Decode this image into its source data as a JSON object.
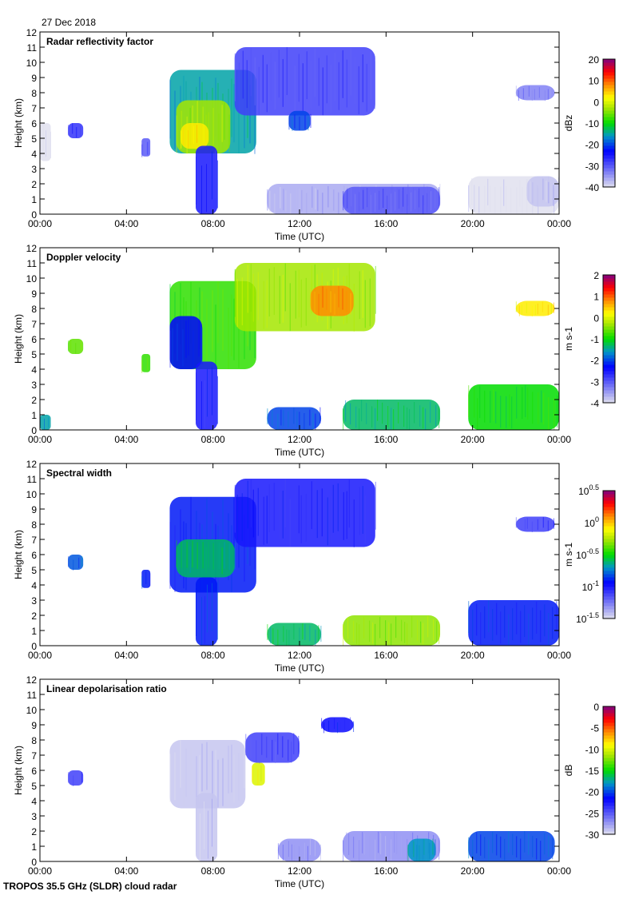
{
  "date": "27 Dec 2018",
  "footer": "TROPOS 35.5 GHz (SLDR) cloud radar",
  "chart_data": [
    {
      "type": "heatmap",
      "title": "Radar reflectivity factor",
      "xlabel": "Time (UTC)",
      "ylabel": "Height (km)",
      "xlim": [
        0,
        24
      ],
      "ylim": [
        0,
        12
      ],
      "xticks": [
        "00:00",
        "04:00",
        "08:00",
        "12:00",
        "16:00",
        "20:00",
        "00:00"
      ],
      "yticks": [
        "0",
        "1",
        "2",
        "3",
        "4",
        "5",
        "6",
        "7",
        "8",
        "9",
        "10",
        "11",
        "12"
      ],
      "colorbar": {
        "label": "dBz",
        "clim": [
          -40,
          20
        ],
        "ticks": [
          "-40",
          "-30",
          "-20",
          "-10",
          "0",
          "10",
          "20"
        ]
      },
      "features": [
        {
          "t": [
            6.0,
            10.0
          ],
          "h": [
            4.0,
            9.5
          ],
          "v": -15
        },
        {
          "t": [
            6.3,
            8.8
          ],
          "h": [
            4.0,
            7.5
          ],
          "v": -3
        },
        {
          "t": [
            6.5,
            7.8
          ],
          "h": [
            4.3,
            6.0
          ],
          "v": 3
        },
        {
          "t": [
            7.2,
            8.2
          ],
          "h": [
            0.0,
            4.5
          ],
          "v": -25
        },
        {
          "t": [
            9.0,
            15.5
          ],
          "h": [
            6.5,
            11.0
          ],
          "v": -28
        },
        {
          "t": [
            11.5,
            12.5
          ],
          "h": [
            5.5,
            6.8
          ],
          "v": -20
        },
        {
          "t": [
            1.3,
            2.0
          ],
          "h": [
            5.0,
            6.0
          ],
          "v": -27
        },
        {
          "t": [
            4.7,
            5.1
          ],
          "h": [
            3.8,
            5.0
          ],
          "v": -30
        },
        {
          "t": [
            10.5,
            18.5
          ],
          "h": [
            0.0,
            2.0
          ],
          "v": -36
        },
        {
          "t": [
            14.0,
            18.5
          ],
          "h": [
            0.0,
            1.8
          ],
          "v": -30
        },
        {
          "t": [
            19.8,
            24.0
          ],
          "h": [
            0.0,
            2.5
          ],
          "v": -40
        },
        {
          "t": [
            22.5,
            24.0
          ],
          "h": [
            0.5,
            2.5
          ],
          "v": -38
        },
        {
          "t": [
            22.0,
            23.8
          ],
          "h": [
            7.5,
            8.5
          ],
          "v": -33
        },
        {
          "t": [
            0.0,
            0.5
          ],
          "h": [
            3.5,
            6.0
          ],
          "v": -40
        }
      ]
    },
    {
      "type": "heatmap",
      "title": "Doppler velocity",
      "xlabel": "Time (UTC)",
      "ylabel": "Height (km)",
      "xlim": [
        0,
        24
      ],
      "ylim": [
        0,
        12
      ],
      "xticks": [
        "00:00",
        "04:00",
        "08:00",
        "12:00",
        "16:00",
        "20:00",
        "00:00"
      ],
      "yticks": [
        "0",
        "1",
        "2",
        "3",
        "4",
        "5",
        "6",
        "7",
        "8",
        "9",
        "10",
        "11",
        "12"
      ],
      "colorbar": {
        "label": "m s-1",
        "clim": [
          -4,
          2
        ],
        "ticks": [
          "-4",
          "-3",
          "-2",
          "-1",
          "0",
          "1",
          "2"
        ]
      },
      "features": [
        {
          "t": [
            6.0,
            10.0
          ],
          "h": [
            4.0,
            9.8
          ],
          "v": -0.8
        },
        {
          "t": [
            6.0,
            7.5
          ],
          "h": [
            4.0,
            7.5
          ],
          "v": -2.3
        },
        {
          "t": [
            7.2,
            8.2
          ],
          "h": [
            0.0,
            4.5
          ],
          "v": -2.5
        },
        {
          "t": [
            9.0,
            15.5
          ],
          "h": [
            6.5,
            11.0
          ],
          "v": -0.3
        },
        {
          "t": [
            12.5,
            14.5
          ],
          "h": [
            7.5,
            9.5
          ],
          "v": 0.8
        },
        {
          "t": [
            1.3,
            2.0
          ],
          "h": [
            5.0,
            6.0
          ],
          "v": -0.6
        },
        {
          "t": [
            4.7,
            5.1
          ],
          "h": [
            3.8,
            5.0
          ],
          "v": -0.8
        },
        {
          "t": [
            10.5,
            13.0
          ],
          "h": [
            0.0,
            1.5
          ],
          "v": -2.0
        },
        {
          "t": [
            14.0,
            18.5
          ],
          "h": [
            0.0,
            2.0
          ],
          "v": -1.3
        },
        {
          "t": [
            19.8,
            24.0
          ],
          "h": [
            0.0,
            3.0
          ],
          "v": -1.0
        },
        {
          "t": [
            22.0,
            23.8
          ],
          "h": [
            7.5,
            8.5
          ],
          "v": 0.3
        },
        {
          "t": [
            0.0,
            0.5
          ],
          "h": [
            0.0,
            1.0
          ],
          "v": -1.5
        }
      ]
    },
    {
      "type": "heatmap",
      "title": "Spectral width",
      "xlabel": "Time (UTC)",
      "ylabel": "Height (km)",
      "xlim": [
        0,
        24
      ],
      "ylim": [
        0,
        12
      ],
      "xticks": [
        "00:00",
        "04:00",
        "08:00",
        "12:00",
        "16:00",
        "20:00",
        "00:00"
      ],
      "yticks": [
        "0",
        "1",
        "2",
        "3",
        "4",
        "5",
        "6",
        "7",
        "8",
        "9",
        "10",
        "11",
        "12"
      ],
      "colorbar": {
        "label": "m s-1",
        "clim_log10": [
          -1.5,
          0.5
        ],
        "ticks": [
          "10^-1.5",
          "10^-1",
          "10^-0.5",
          "10^0",
          "10^0.5"
        ]
      },
      "features": [
        {
          "t": [
            6.0,
            10.0
          ],
          "h": [
            3.5,
            9.8
          ],
          "v": -0.9
        },
        {
          "t": [
            6.3,
            9.0
          ],
          "h": [
            4.5,
            7.0
          ],
          "v": -0.6
        },
        {
          "t": [
            7.2,
            8.2
          ],
          "h": [
            0.0,
            4.5
          ],
          "v": -0.9
        },
        {
          "t": [
            9.0,
            15.5
          ],
          "h": [
            6.5,
            11.0
          ],
          "v": -1.0
        },
        {
          "t": [
            1.3,
            2.0
          ],
          "h": [
            5.0,
            6.0
          ],
          "v": -0.8
        },
        {
          "t": [
            4.7,
            5.1
          ],
          "h": [
            3.8,
            5.0
          ],
          "v": -0.9
        },
        {
          "t": [
            10.5,
            13.0
          ],
          "h": [
            0.0,
            1.5
          ],
          "v": -0.6
        },
        {
          "t": [
            14.0,
            18.5
          ],
          "h": [
            0.0,
            2.0
          ],
          "v": -0.3
        },
        {
          "t": [
            19.8,
            24.0
          ],
          "h": [
            0.0,
            3.0
          ],
          "v": -0.9
        },
        {
          "t": [
            22.0,
            23.8
          ],
          "h": [
            7.5,
            8.5
          ],
          "v": -1.1
        }
      ]
    },
    {
      "type": "heatmap",
      "title": "Linear depolarisation ratio",
      "xlabel": "Time (UTC)",
      "ylabel": "Height (km)",
      "xlim": [
        0,
        24
      ],
      "ylim": [
        0,
        12
      ],
      "xticks": [
        "00:00",
        "04:00",
        "08:00",
        "12:00",
        "16:00",
        "20:00",
        "00:00"
      ],
      "yticks": [
        "0",
        "1",
        "2",
        "3",
        "4",
        "5",
        "6",
        "7",
        "8",
        "9",
        "10",
        "11",
        "12"
      ],
      "colorbar": {
        "label": "dB",
        "clim": [
          -30,
          0
        ],
        "ticks": [
          "-30",
          "-25",
          "-20",
          "-15",
          "-10",
          "-5",
          "0"
        ]
      },
      "features": [
        {
          "t": [
            6.0,
            9.5
          ],
          "h": [
            3.5,
            8.0
          ],
          "v": -29
        },
        {
          "t": [
            7.2,
            8.2
          ],
          "h": [
            0.0,
            4.5
          ],
          "v": -29
        },
        {
          "t": [
            9.8,
            10.4
          ],
          "h": [
            5.0,
            6.5
          ],
          "v": -10
        },
        {
          "t": [
            9.5,
            12.0
          ],
          "h": [
            6.5,
            8.5
          ],
          "v": -24
        },
        {
          "t": [
            1.3,
            2.0
          ],
          "h": [
            5.0,
            6.0
          ],
          "v": -24
        },
        {
          "t": [
            11.0,
            13.0
          ],
          "h": [
            0.0,
            1.5
          ],
          "v": -27
        },
        {
          "t": [
            14.0,
            18.5
          ],
          "h": [
            0.0,
            2.0
          ],
          "v": -27
        },
        {
          "t": [
            17.0,
            18.3
          ],
          "h": [
            0.0,
            1.5
          ],
          "v": -18
        },
        {
          "t": [
            19.8,
            23.8
          ],
          "h": [
            0.0,
            2.0
          ],
          "v": -20
        },
        {
          "t": [
            13.0,
            14.5
          ],
          "h": [
            8.5,
            9.5
          ],
          "v": -22
        }
      ]
    }
  ]
}
